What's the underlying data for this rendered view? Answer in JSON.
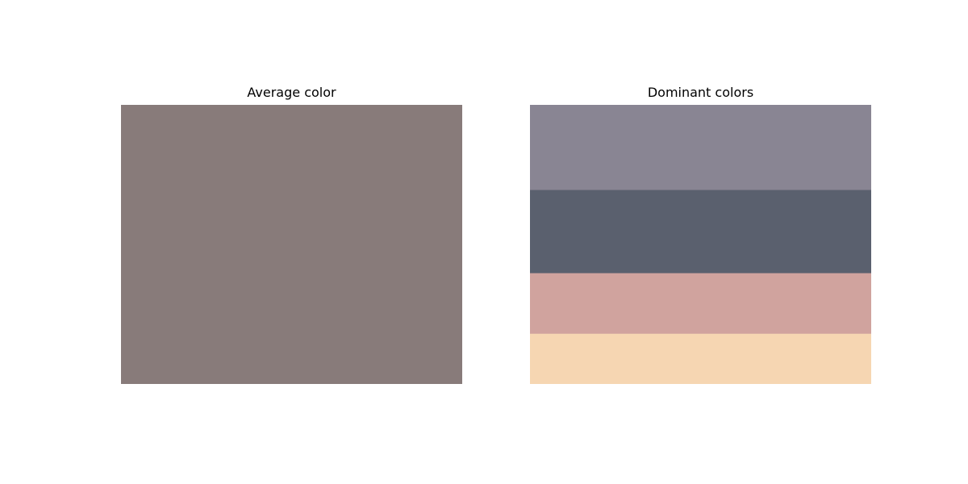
{
  "chart_data": [
    {
      "type": "bar",
      "title": "Average color",
      "swatches": [
        {
          "color": "#887b7a",
          "proportion": 1.0
        }
      ]
    },
    {
      "type": "bar",
      "title": "Dominant colors",
      "swatches": [
        {
          "color": "#898593",
          "proportion": 0.305
        },
        {
          "color": "#5a606e",
          "proportion": 0.298
        },
        {
          "color": "#d0a39e",
          "proportion": 0.217
        },
        {
          "color": "#f6d6b2",
          "proportion": 0.18
        }
      ]
    }
  ]
}
